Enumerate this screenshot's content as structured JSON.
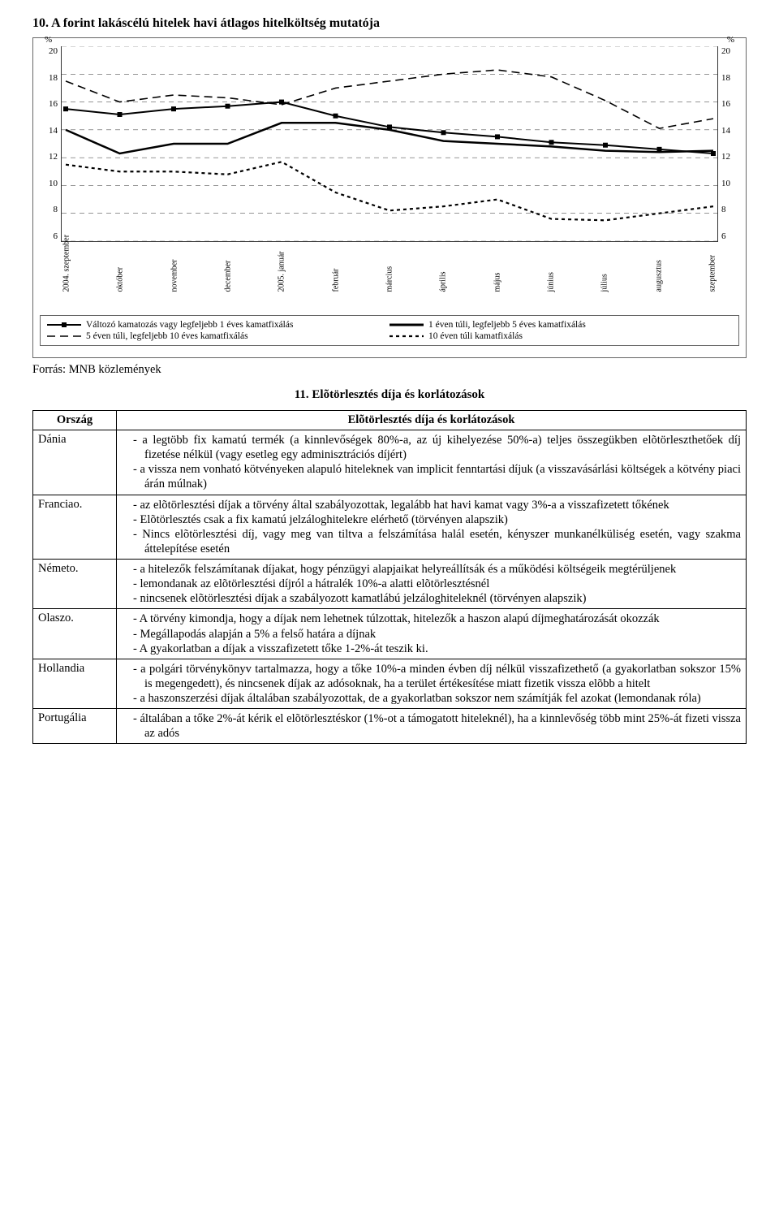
{
  "title": "10. A forint lakáscélú hitelek havi átlagos hitelköltség mutatója",
  "source": "Forrás: MNB közlemények",
  "subtitle": "11. Elõtörlesztés díja és korlátozások",
  "table": {
    "headers": [
      "Ország",
      "Elõtörlesztés díja és korlátozások"
    ],
    "rows": [
      {
        "country": "Dánia",
        "items": [
          "a legtöbb fix kamatú termék (a kinnlevőségek 80%-a, az új kihelyezése 50%-a) teljes összegükben elõtörleszthetőek díj fizetése nélkül (vagy esetleg egy adminisztrációs díjért)",
          "a vissza nem vonható kötvényeken alapuló hiteleknek van implicit fenntartási díjuk (a visszavásárlási költségek a kötvény piaci árán múlnak)"
        ]
      },
      {
        "country": "Franciao.",
        "items": [
          "az elõtörlesztési díjak a törvény által szabályozottak, legalább hat havi kamat vagy 3%-a a visszafizetett tőkének",
          "Elõtörlesztés csak a fix kamatú jelzáloghitelekre elérhető (törvényen alapszik)",
          "Nincs elõtörlesztési díj, vagy meg van tiltva a felszámítása halál esetén, kényszer munkanélküliség esetén, vagy szakma áttelepítése esetén"
        ]
      },
      {
        "country": "Németo.",
        "items": [
          "a hitelezők felszámítanak díjakat, hogy pénzügyi alapjaikat helyreállítsák és a működési költségeik megtérüljenek",
          "lemondanak az elõtörlesztési díjról a hátralék 10%-a alatti elõtörlesztésnél",
          "nincsenek elõtörlesztési díjak a szabályozott kamatlábú jelzáloghiteleknél (törvényen alapszik)"
        ]
      },
      {
        "country": "Olaszo.",
        "items": [
          "A törvény kimondja, hogy a díjak nem lehetnek túlzottak, hitelezők a haszon alapú díjmeghatározását okozzák",
          "Megállapodás alapján a 5% a felső határa a díjnak",
          "A gyakorlatban a díjak a visszafizetett tőke 1-2%-át teszik ki."
        ]
      },
      {
        "country": "Hollandia",
        "items": [
          "a polgári törvénykönyv tartalmazza, hogy a tőke 10%-a minden évben díj nélkül visszafizethető (a gyakorlatban sokszor 15% is megengedett), és nincsenek díjak az adósoknak, ha a terület értékesítése miatt fizetik vissza elõbb a hitelt",
          "a haszonszerzési díjak általában szabályozottak, de a gyakorlatban sokszor nem számítják fel azokat (lemondanak róla)"
        ]
      },
      {
        "country": "Portugália",
        "items": [
          "általában a tőke 2%-át kérik el elõtörlesztéskor (1%-ot a támogatott hiteleknél), ha a kinnlevőség több mint 25%-át fizeti vissza az adós"
        ]
      }
    ]
  },
  "chart": {
    "y_unit": "%",
    "y_ticks": [
      "20",
      "18",
      "16",
      "14",
      "12",
      "10",
      "8",
      "6"
    ],
    "y_min": 6,
    "y_max": 20,
    "x_labels": [
      "2004. szeptember",
      "október",
      "november",
      "december",
      "2005. január",
      "február",
      "március",
      "április",
      "május",
      "június",
      "július",
      "augusztus",
      "szeptember"
    ],
    "series": [
      {
        "name": "Változó kamatozás vagy legfeljebb 1 éves kamatfixálás",
        "stroke": "#000",
        "width": 2,
        "dash": "",
        "markers": true,
        "y": [
          15.5,
          15.1,
          15.5,
          15.7,
          16.0,
          15.0,
          14.2,
          13.8,
          13.5,
          13.1,
          12.9,
          12.6,
          12.3
        ]
      },
      {
        "name": "1 éven túli, legfeljebb 5 éves kamatfixálás",
        "stroke": "#000",
        "width": 2.5,
        "dash": "",
        "markers": false,
        "y": [
          14.0,
          12.3,
          13.0,
          13.0,
          14.5,
          14.5,
          14.0,
          13.2,
          13.0,
          12.8,
          12.5,
          12.4,
          12.5
        ]
      },
      {
        "name": "5 éven túli, legfeljebb 10 éves kamatfixálás",
        "stroke": "#000",
        "width": 1.6,
        "dash": "10,6",
        "markers": false,
        "y": [
          17.5,
          16.0,
          16.5,
          16.3,
          15.8,
          17.0,
          17.5,
          18.0,
          18.3,
          17.8,
          16.1,
          14.1,
          14.8
        ]
      },
      {
        "name": "10 éven túli kamatfixálás",
        "stroke": "#000",
        "width": 2.2,
        "dash": "4,4",
        "markers": false,
        "y": [
          11.5,
          11.0,
          11.0,
          10.8,
          11.7,
          9.5,
          8.2,
          8.5,
          9.0,
          7.6,
          7.5,
          8.0,
          8.5
        ]
      }
    ],
    "legend": [
      {
        "label": "Változó kamatozás vagy legfeljebb 1 éves kamatfixálás",
        "style": "solid",
        "width": 2,
        "markers": true
      },
      {
        "label": "1 éven túli, legfeljebb 5 éves kamatfixálás",
        "style": "solid",
        "width": 3,
        "markers": false
      },
      {
        "label": "5 éven túli, legfeljebb 10 éves kamatfixálás",
        "style": "longdash",
        "width": 1.5,
        "markers": false
      },
      {
        "label": "10 éven túli kamatfixálás",
        "style": "shortdash",
        "width": 2.2,
        "markers": false
      }
    ],
    "grid_color": "#555",
    "background_color": "#ffffff"
  }
}
